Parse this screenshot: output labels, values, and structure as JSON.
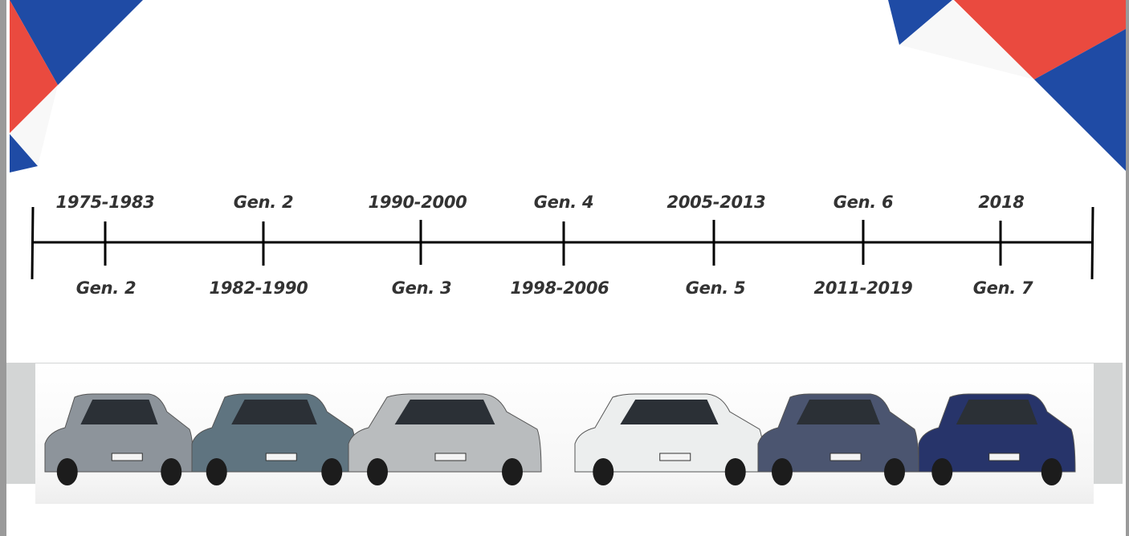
{
  "colors": {
    "blue": "#1f4ba5",
    "red": "#ea4a3f",
    "text": "#333333",
    "timeline": "#000000"
  },
  "timeline": {
    "top_labels": [
      "1975-1983",
      "Gen. 2",
      "1990-2000",
      "Gen. 4",
      "2005-2013",
      "Gen. 6",
      "2018"
    ],
    "bottom_labels": [
      "Gen. 2",
      "1982-1990",
      "Gen. 3",
      "1998-2006",
      "Gen. 5",
      "2011-2019",
      "Gen. 7"
    ]
  },
  "photo": {
    "cars": [
      {
        "color": "#8d949b"
      },
      {
        "color": "#5f7480"
      },
      {
        "color": "#b9bcbe"
      },
      {
        "color": "#eceeee"
      },
      {
        "color": "#4b5570"
      },
      {
        "color": "#27346a"
      }
    ]
  }
}
